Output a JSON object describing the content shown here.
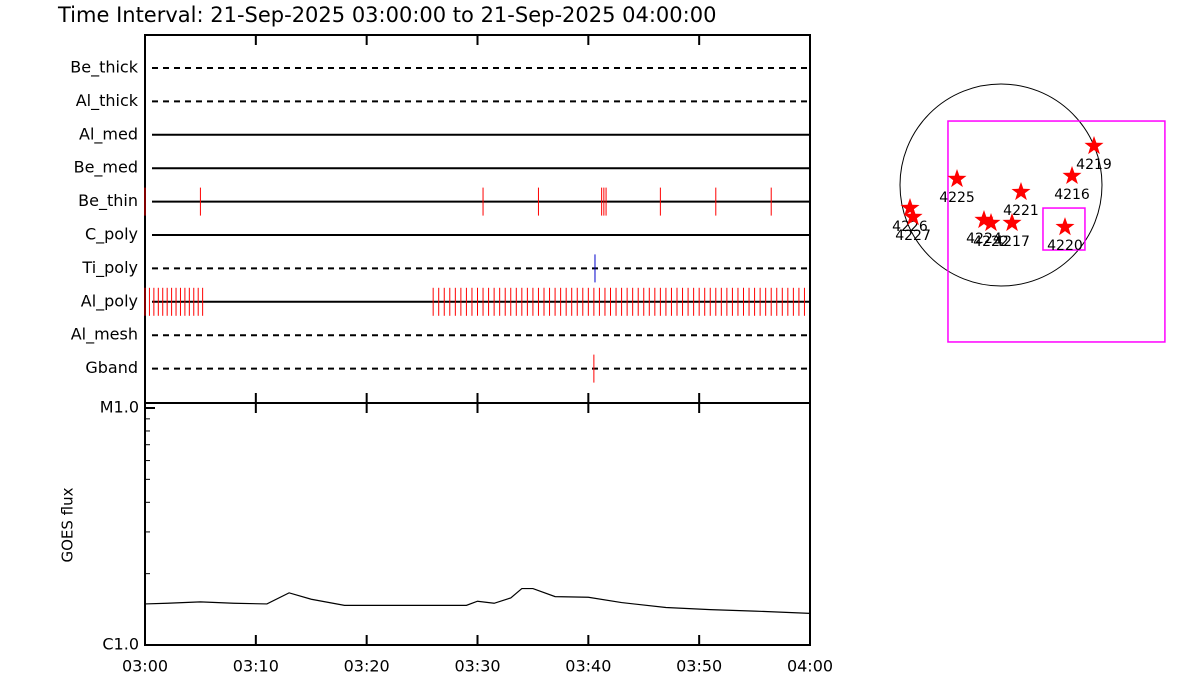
{
  "chart_data": [
    {
      "type": "timeline",
      "title": "Time Interval: 21-Sep-2025 03:00:00 to 21-Sep-2025 04:00:00",
      "xlim": [
        0,
        60
      ],
      "xticks": [
        0,
        10,
        20,
        30,
        40,
        50,
        60
      ],
      "rows": [
        {
          "name": "Be_thick",
          "style": "dashed",
          "color": "#ff0000",
          "events": []
        },
        {
          "name": "Al_thick",
          "style": "dashed",
          "color": "#ff0000",
          "events": []
        },
        {
          "name": "Al_med",
          "style": "solid",
          "color": "#ff0000",
          "events": []
        },
        {
          "name": "Be_med",
          "style": "solid",
          "color": "#ff0000",
          "events": []
        },
        {
          "name": "Be_thin",
          "style": "solid",
          "color": "#ff0000",
          "events": [
            0,
            5,
            30.5,
            35.5,
            41.2,
            41.4,
            41.6,
            46.5,
            51.5,
            56.5
          ]
        },
        {
          "name": "C_poly",
          "style": "solid",
          "color": "#ff0000",
          "events": []
        },
        {
          "name": "Ti_poly",
          "style": "dashed",
          "color": "#0000cc",
          "events": [
            40.6
          ]
        },
        {
          "name": "Al_poly",
          "style": "solid",
          "color": "#ff0000",
          "events": [
            0,
            0.4,
            0.8,
            1.2,
            1.6,
            2,
            2.4,
            2.8,
            3.2,
            3.6,
            4,
            4.4,
            4.8,
            5.2,
            26,
            26.5,
            27,
            27.5,
            28,
            28.5,
            29,
            29.5,
            30,
            30.5,
            31,
            31.5,
            32,
            32.5,
            33,
            33.5,
            34,
            34.5,
            35,
            35.5,
            36,
            36.5,
            37,
            37.5,
            38,
            38.5,
            39,
            39.5,
            40,
            40.5,
            41,
            41.5,
            42,
            42.5,
            43,
            43.5,
            44,
            44.5,
            45,
            45.5,
            46,
            46.5,
            47,
            47.5,
            48,
            48.5,
            49,
            49.5,
            50,
            50.5,
            51,
            51.5,
            52,
            52.5,
            53,
            53.5,
            54,
            54.5,
            55,
            55.5,
            56,
            56.5,
            57,
            57.5,
            58,
            58.5,
            59,
            59.5
          ]
        },
        {
          "name": "Al_mesh",
          "style": "dashed",
          "color": "#ff0000",
          "events": []
        },
        {
          "name": "Gband",
          "style": "dashed",
          "color": "#ff0000",
          "events": [
            40.5
          ]
        }
      ]
    },
    {
      "type": "line",
      "y_label": "GOES flux",
      "x": [
        0,
        2,
        5,
        8,
        11,
        13,
        15,
        18,
        22,
        26,
        29,
        30,
        31.5,
        33,
        34,
        35,
        37,
        40,
        43,
        47,
        51,
        55,
        60
      ],
      "values": [
        1.49e-06,
        1.5e-06,
        1.52e-06,
        1.5e-06,
        1.49e-06,
        1.66e-06,
        1.56e-06,
        1.47e-06,
        1.47e-06,
        1.47e-06,
        1.47e-06,
        1.53e-06,
        1.5e-06,
        1.58e-06,
        1.73e-06,
        1.73e-06,
        1.6e-06,
        1.59e-06,
        1.51e-06,
        1.44e-06,
        1.41e-06,
        1.39e-06,
        1.36e-06
      ],
      "color": "#000000",
      "log_y": true,
      "xlim": [
        0,
        60
      ],
      "xticks": [
        {
          "value": 0,
          "label": "03:00"
        },
        {
          "value": 10,
          "label": "03:10"
        },
        {
          "value": 20,
          "label": "03:20"
        },
        {
          "value": 30,
          "label": "03:30"
        },
        {
          "value": 40,
          "label": "03:40"
        },
        {
          "value": 50,
          "label": "03:50"
        },
        {
          "value": 60,
          "label": "04:00"
        }
      ],
      "ylim": [
        1e-06,
        1e-05
      ],
      "yticks": [
        {
          "value": 1e-06,
          "label": "C1.0"
        },
        {
          "value": 1e-05,
          "label": "M1.0"
        }
      ],
      "minor_yticks": [
        2e-06,
        3e-06,
        4e-06,
        5e-06,
        6e-06,
        7e-06,
        8e-06,
        9e-06
      ]
    },
    {
      "type": "map",
      "disk_radius": 960,
      "fov_color": "#ff00ff",
      "star_color": "#ff0000",
      "fovs": [
        {
          "x0": -504,
          "y0": -1492,
          "x1": 1558,
          "y1": 608
        },
        {
          "x0": 399,
          "y0": -618,
          "x1": 798,
          "y1": -219
        }
      ],
      "regions": [
        {
          "label": "4219",
          "x": 884,
          "y": 371
        },
        {
          "label": "4216",
          "x": 675,
          "y": 86
        },
        {
          "label": "4225",
          "x": -418,
          "y": 57
        },
        {
          "label": "4221",
          "x": 190,
          "y": -67
        },
        {
          "label": "4226",
          "x": -865,
          "y": -219
        },
        {
          "label": "4227",
          "x": -836,
          "y": -304
        },
        {
          "label": "4224",
          "x": -162,
          "y": -333
        },
        {
          "label": "4222",
          "x": -95,
          "y": -361
        },
        {
          "label": "4217",
          "x": 105,
          "y": -361
        },
        {
          "label": "4220",
          "x": 608,
          "y": -400
        }
      ]
    }
  ]
}
